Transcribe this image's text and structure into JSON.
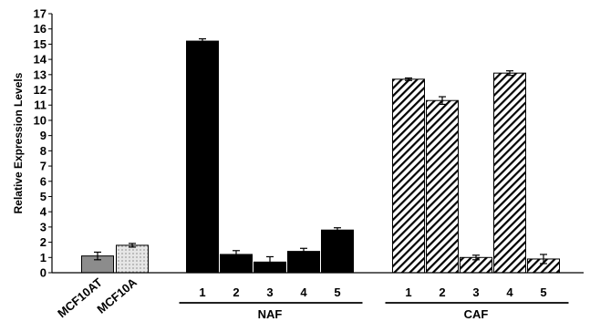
{
  "chart_data": {
    "type": "bar",
    "title": "",
    "xlabel": "",
    "ylabel": "Relative Expression Levels",
    "ylim": [
      0,
      17
    ],
    "yticks": [
      0,
      1,
      2,
      3,
      4,
      5,
      6,
      7,
      8,
      9,
      10,
      11,
      12,
      13,
      14,
      15,
      16,
      17
    ],
    "grid": false,
    "legend": "none",
    "categories": [
      "MCF10AT",
      "MCF10A",
      "1",
      "2",
      "3",
      "4",
      "5",
      "1",
      "2",
      "3",
      "4",
      "5"
    ],
    "values": [
      1.1,
      1.8,
      15.2,
      1.2,
      0.7,
      1.4,
      2.8,
      12.7,
      11.3,
      1.0,
      13.1,
      0.9
    ],
    "errors": [
      0.25,
      0.12,
      0.15,
      0.25,
      0.35,
      0.2,
      0.15,
      0.08,
      0.25,
      0.15,
      0.15,
      0.3
    ],
    "styles": [
      "gray",
      "dotted",
      "black",
      "black",
      "black",
      "black",
      "black",
      "hatched",
      "hatched",
      "hatched",
      "hatched",
      "hatched"
    ],
    "groups": [
      {
        "label": "NAF",
        "members": [
          "1",
          "2",
          "3",
          "4",
          "5"
        ]
      },
      {
        "label": "CAF",
        "members": [
          "1",
          "2",
          "3",
          "4",
          "5"
        ]
      }
    ],
    "colors": {
      "gray": "#8c8c8c",
      "black": "#000000",
      "dotted_bg": "#e6e6e6",
      "hatch": "#000000"
    }
  }
}
